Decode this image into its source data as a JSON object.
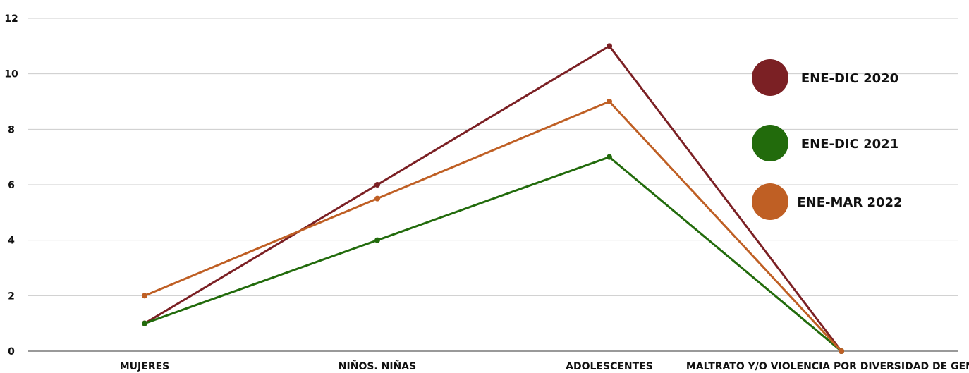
{
  "chart_data": {
    "type": "line",
    "categories": [
      "MUJERES",
      "NIÑOS. NIÑAS",
      "ADOLESCENTES",
      "MALTRATO Y/O VIOLENCIA POR DIVERSIDAD DE GENERO"
    ],
    "series": [
      {
        "name": "ENE-DIC 2020",
        "color": "#7b2024",
        "values": [
          1,
          6,
          11,
          0
        ]
      },
      {
        "name": "ENE-DIC 2021",
        "color": "#226b0c",
        "values": [
          1,
          4,
          7,
          0
        ]
      },
      {
        "name": "ENE-MAR 2022",
        "color": "#bf5f24",
        "values": [
          2,
          5.5,
          9,
          0
        ]
      }
    ],
    "yticks": [
      "0",
      "2",
      "4",
      "6",
      "8",
      "10",
      "12"
    ],
    "ylim": [
      0,
      12
    ],
    "grid": true,
    "legend_placement": "right"
  }
}
